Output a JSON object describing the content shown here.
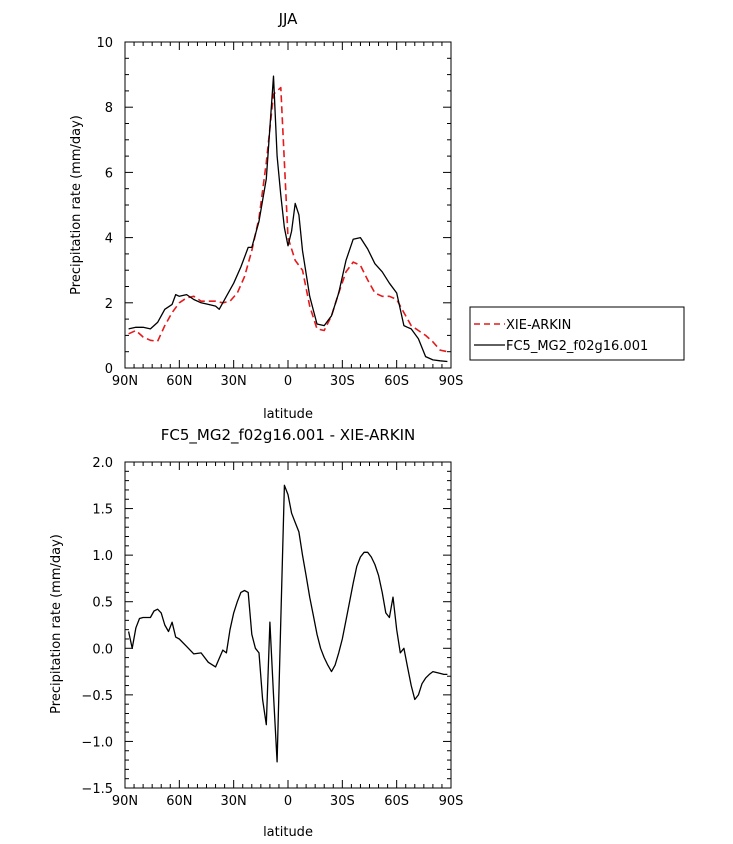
{
  "chart_data": [
    {
      "type": "line",
      "title": "JJA",
      "xlabel": "latitude",
      "ylabel": "Precipitation rate (mm/day)",
      "xlim": [
        90,
        -90
      ],
      "ylim": [
        0,
        10
      ],
      "x_ticks": [
        90,
        60,
        30,
        0,
        -30,
        -60,
        -90
      ],
      "x_tick_labels": [
        "90N",
        "60N",
        "30N",
        "0",
        "30S",
        "60S",
        "90S"
      ],
      "y_ticks": [
        0,
        2,
        4,
        6,
        8,
        10
      ],
      "y_tick_labels": [
        "0",
        "2",
        "4",
        "6",
        "8",
        "10"
      ],
      "legend": "right",
      "series": [
        {
          "name": "XIE-ARKIN",
          "color": "#e41a1c",
          "dash": "dashed",
          "x": [
            88,
            84,
            80,
            76,
            72,
            68,
            64,
            60,
            56,
            52,
            48,
            44,
            40,
            36,
            32,
            28,
            24,
            20,
            16,
            12,
            8,
            4,
            0,
            -4,
            -8,
            -12,
            -16,
            -20,
            -24,
            -28,
            -32,
            -36,
            -40,
            -44,
            -48,
            -52,
            -56,
            -60,
            -64,
            -68,
            -72,
            -76,
            -80,
            -84,
            -88
          ],
          "values": [
            1.05,
            1.15,
            0.95,
            0.85,
            0.82,
            1.3,
            1.7,
            2.0,
            2.15,
            2.2,
            2.05,
            2.05,
            2.05,
            2.0,
            2.05,
            2.3,
            2.8,
            3.6,
            4.6,
            6.3,
            8.4,
            8.6,
            4.0,
            3.3,
            3.0,
            1.9,
            1.2,
            1.15,
            1.6,
            2.3,
            2.95,
            3.25,
            3.15,
            2.7,
            2.3,
            2.2,
            2.2,
            2.1,
            1.7,
            1.3,
            1.15,
            1.0,
            0.8,
            0.55,
            0.5
          ]
        },
        {
          "name": "FC5_MG2_f02g16.001",
          "color": "#000000",
          "dash": "solid",
          "x": [
            88,
            84,
            80,
            76,
            72,
            68,
            64,
            62,
            60,
            56,
            52,
            48,
            44,
            40,
            38,
            34,
            30,
            26,
            22,
            20,
            16,
            12,
            8,
            6,
            4,
            2,
            0,
            -2,
            -4,
            -6,
            -8,
            -12,
            -16,
            -20,
            -24,
            -28,
            -32,
            -36,
            -40,
            -44,
            -48,
            -52,
            -56,
            -60,
            -64,
            -66,
            -68,
            -72,
            -76,
            -80,
            -84,
            -88
          ],
          "values": [
            1.2,
            1.25,
            1.25,
            1.2,
            1.4,
            1.8,
            1.95,
            2.25,
            2.2,
            2.25,
            2.1,
            2.0,
            1.95,
            1.9,
            1.8,
            2.2,
            2.6,
            3.1,
            3.7,
            3.7,
            4.5,
            5.8,
            8.95,
            6.5,
            5.3,
            4.3,
            3.75,
            4.2,
            5.05,
            4.7,
            3.6,
            2.2,
            1.35,
            1.3,
            1.6,
            2.3,
            3.3,
            3.95,
            4.0,
            3.65,
            3.2,
            2.95,
            2.6,
            2.3,
            1.3,
            1.25,
            1.2,
            0.9,
            0.35,
            0.25,
            0.22,
            0.2
          ]
        }
      ]
    },
    {
      "type": "line",
      "title": "FC5_MG2_f02g16.001 - XIE-ARKIN",
      "xlabel": "latitude",
      "ylabel": "Precipitation rate (mm/day)",
      "xlim": [
        90,
        -90
      ],
      "ylim": [
        -1.5,
        2.0
      ],
      "x_ticks": [
        90,
        60,
        30,
        0,
        -30,
        -60,
        -90
      ],
      "x_tick_labels": [
        "90N",
        "60N",
        "30N",
        "0",
        "30S",
        "60S",
        "90S"
      ],
      "y_ticks": [
        -1.5,
        -1.0,
        -0.5,
        0.0,
        0.5,
        1.0,
        1.5,
        2.0
      ],
      "y_tick_labels": [
        "−1.5",
        "−1.0",
        "−0.5",
        "0.0",
        "0.5",
        "1.0",
        "1.5",
        "2.0"
      ],
      "series": [
        {
          "color": "#000000",
          "dash": "solid",
          "x": [
            88,
            86,
            84,
            82,
            80,
            78,
            76,
            74,
            72,
            70,
            68,
            66,
            64,
            62,
            60,
            56,
            52,
            48,
            44,
            40,
            36,
            34,
            32,
            30,
            28,
            26,
            24,
            22,
            20,
            18,
            16,
            14,
            12,
            10,
            8,
            6,
            4,
            2,
            0,
            -2,
            -4,
            -6,
            -8,
            -10,
            -12,
            -14,
            -16,
            -18,
            -20,
            -22,
            -24,
            -26,
            -28,
            -30,
            -32,
            -34,
            -36,
            -38,
            -40,
            -42,
            -44,
            -46,
            -48,
            -50,
            -52,
            -54,
            -56,
            -58,
            -60,
            -62,
            -64,
            -66,
            -68,
            -70,
            -72,
            -74,
            -76,
            -78,
            -80,
            -82,
            -84,
            -86,
            -88
          ],
          "values": [
            0.18,
            0.0,
            0.22,
            0.32,
            0.33,
            0.33,
            0.33,
            0.4,
            0.42,
            0.38,
            0.25,
            0.18,
            0.28,
            0.12,
            0.1,
            0.02,
            -0.06,
            -0.05,
            -0.15,
            -0.2,
            -0.02,
            -0.05,
            0.2,
            0.38,
            0.5,
            0.6,
            0.62,
            0.6,
            0.15,
            0.0,
            -0.05,
            -0.55,
            -0.82,
            0.28,
            -0.5,
            -1.22,
            0.3,
            1.75,
            1.65,
            1.45,
            1.35,
            1.25,
            1.0,
            0.78,
            0.55,
            0.35,
            0.15,
            0.0,
            -0.1,
            -0.18,
            -0.25,
            -0.18,
            -0.05,
            0.1,
            0.3,
            0.5,
            0.7,
            0.88,
            0.98,
            1.03,
            1.03,
            0.98,
            0.9,
            0.78,
            0.6,
            0.38,
            0.33,
            0.55,
            0.2,
            -0.05,
            0.0,
            -0.2,
            -0.4,
            -0.55,
            -0.5,
            -0.38,
            -0.32,
            -0.28,
            -0.25,
            -0.26,
            -0.27,
            -0.28,
            -0.28
          ]
        }
      ]
    }
  ]
}
